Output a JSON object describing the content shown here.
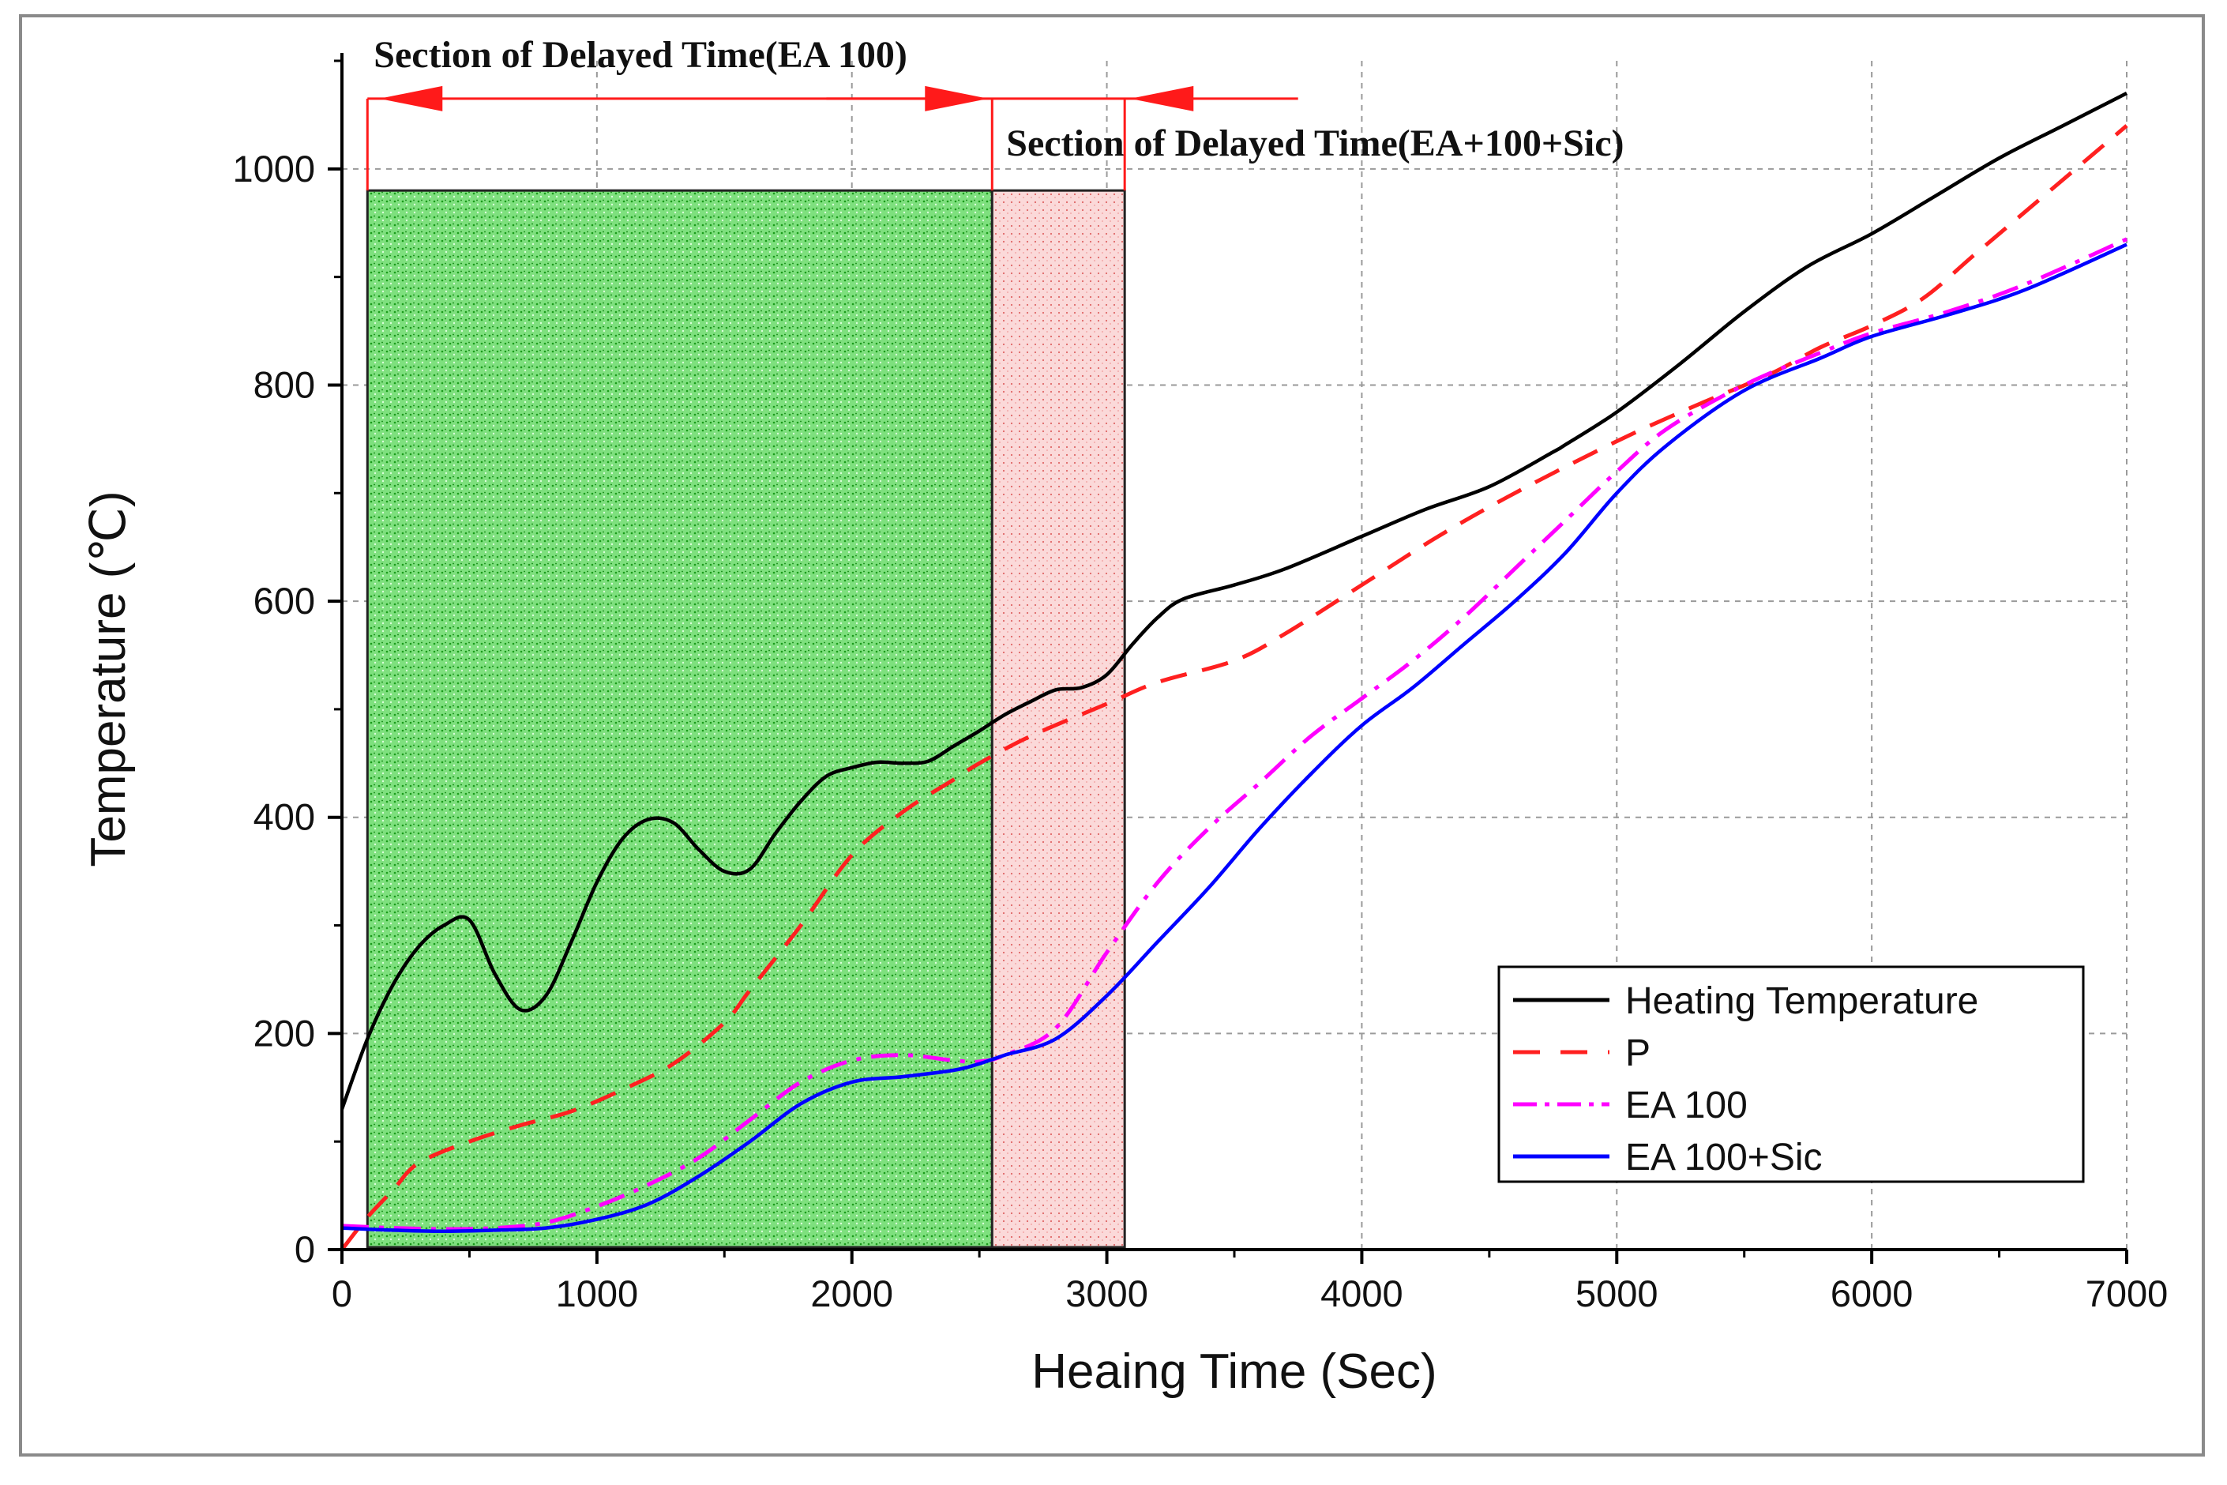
{
  "chart_data": {
    "type": "line",
    "title": "",
    "xlabel": "Heaing Time (Sec)",
    "ylabel": "Temperature (℃)",
    "xlim": [
      0,
      7000
    ],
    "ylim": [
      0,
      1100
    ],
    "xticks": [
      "0",
      "1000",
      "2000",
      "3000",
      "4000",
      "5000",
      "6000",
      "7000"
    ],
    "yticks": [
      "0",
      "200",
      "400",
      "600",
      "800",
      "1000"
    ],
    "grid": "dashed",
    "legend_position": "bottom-right",
    "series": [
      {
        "name": "Heating Temperature",
        "color": "#000000",
        "dash": "solid",
        "points": [
          [
            0,
            130
          ],
          [
            100,
            195
          ],
          [
            200,
            245
          ],
          [
            300,
            280
          ],
          [
            400,
            300
          ],
          [
            500,
            305
          ],
          [
            600,
            255
          ],
          [
            700,
            222
          ],
          [
            800,
            235
          ],
          [
            900,
            285
          ],
          [
            1000,
            340
          ],
          [
            1100,
            380
          ],
          [
            1200,
            398
          ],
          [
            1300,
            395
          ],
          [
            1400,
            370
          ],
          [
            1500,
            350
          ],
          [
            1600,
            352
          ],
          [
            1700,
            385
          ],
          [
            1800,
            415
          ],
          [
            1900,
            438
          ],
          [
            2000,
            446
          ],
          [
            2100,
            451
          ],
          [
            2200,
            450
          ],
          [
            2300,
            452
          ],
          [
            2400,
            466
          ],
          [
            2500,
            480
          ],
          [
            2600,
            495
          ],
          [
            2700,
            507
          ],
          [
            2800,
            518
          ],
          [
            2900,
            520
          ],
          [
            3000,
            532
          ],
          [
            3100,
            560
          ],
          [
            3200,
            585
          ],
          [
            3300,
            602
          ],
          [
            3500,
            615
          ],
          [
            3700,
            630
          ],
          [
            4000,
            660
          ],
          [
            4250,
            685
          ],
          [
            4500,
            706
          ],
          [
            4750,
            738
          ],
          [
            4800,
            745
          ],
          [
            5000,
            775
          ],
          [
            5250,
            820
          ],
          [
            5500,
            868
          ],
          [
            5750,
            910
          ],
          [
            6000,
            940
          ],
          [
            6250,
            975
          ],
          [
            6500,
            1010
          ],
          [
            6750,
            1040
          ],
          [
            7000,
            1070
          ]
        ]
      },
      {
        "name": "P",
        "color": "#ff2020",
        "dash": "dashed",
        "points": [
          [
            0,
            0
          ],
          [
            100,
            30
          ],
          [
            200,
            55
          ],
          [
            300,
            80
          ],
          [
            500,
            100
          ],
          [
            700,
            115
          ],
          [
            900,
            128
          ],
          [
            1100,
            148
          ],
          [
            1300,
            172
          ],
          [
            1500,
            210
          ],
          [
            1600,
            240
          ],
          [
            1800,
            300
          ],
          [
            2000,
            365
          ],
          [
            2200,
            405
          ],
          [
            2400,
            435
          ],
          [
            2500,
            450
          ],
          [
            2700,
            475
          ],
          [
            3000,
            505
          ],
          [
            3200,
            525
          ],
          [
            3500,
            545
          ],
          [
            3700,
            570
          ],
          [
            4000,
            615
          ],
          [
            4300,
            660
          ],
          [
            4600,
            700
          ],
          [
            5000,
            748
          ],
          [
            5300,
            780
          ],
          [
            5600,
            810
          ],
          [
            5800,
            835
          ],
          [
            6000,
            855
          ],
          [
            6200,
            880
          ],
          [
            6400,
            920
          ],
          [
            6600,
            960
          ],
          [
            6800,
            1000
          ],
          [
            7000,
            1040
          ]
        ]
      },
      {
        "name": "EA 100",
        "color": "#ff00ff",
        "dash": "dashdot",
        "points": [
          [
            0,
            22
          ],
          [
            200,
            20
          ],
          [
            400,
            19
          ],
          [
            600,
            20
          ],
          [
            800,
            25
          ],
          [
            1000,
            40
          ],
          [
            1200,
            60
          ],
          [
            1400,
            85
          ],
          [
            1600,
            120
          ],
          [
            1800,
            155
          ],
          [
            2000,
            175
          ],
          [
            2200,
            180
          ],
          [
            2400,
            175
          ],
          [
            2500,
            174
          ],
          [
            2600,
            180
          ],
          [
            2800,
            205
          ],
          [
            3000,
            275
          ],
          [
            3200,
            340
          ],
          [
            3400,
            390
          ],
          [
            3600,
            432
          ],
          [
            3800,
            475
          ],
          [
            4000,
            510
          ],
          [
            4200,
            545
          ],
          [
            4400,
            585
          ],
          [
            4600,
            630
          ],
          [
            4800,
            675
          ],
          [
            5000,
            720
          ],
          [
            5200,
            760
          ],
          [
            5500,
            800
          ],
          [
            5800,
            830
          ],
          [
            6000,
            848
          ],
          [
            6300,
            868
          ],
          [
            6600,
            893
          ],
          [
            7000,
            935
          ]
        ]
      },
      {
        "name": "EA 100+Sic",
        "color": "#0000ff",
        "dash": "solid",
        "points": [
          [
            0,
            20
          ],
          [
            200,
            18
          ],
          [
            400,
            17
          ],
          [
            600,
            18
          ],
          [
            800,
            20
          ],
          [
            1000,
            28
          ],
          [
            1200,
            42
          ],
          [
            1400,
            68
          ],
          [
            1600,
            100
          ],
          [
            1800,
            135
          ],
          [
            2000,
            155
          ],
          [
            2200,
            160
          ],
          [
            2400,
            166
          ],
          [
            2500,
            172
          ],
          [
            2600,
            180
          ],
          [
            2800,
            195
          ],
          [
            3000,
            235
          ],
          [
            3200,
            285
          ],
          [
            3400,
            335
          ],
          [
            3600,
            390
          ],
          [
            3800,
            440
          ],
          [
            4000,
            485
          ],
          [
            4200,
            520
          ],
          [
            4400,
            560
          ],
          [
            4600,
            600
          ],
          [
            4800,
            645
          ],
          [
            5000,
            700
          ],
          [
            5200,
            745
          ],
          [
            5500,
            795
          ],
          [
            5800,
            825
          ],
          [
            6000,
            845
          ],
          [
            6300,
            865
          ],
          [
            6600,
            888
          ],
          [
            7000,
            930
          ]
        ]
      }
    ],
    "annotations": [
      {
        "text": "Section of Delayed Time(EA 100)",
        "x_range": [
          100,
          2550
        ],
        "fill": "green"
      },
      {
        "text": "Section of Delayed Time(EA+100+Sic)",
        "x_range": [
          2550,
          3070
        ],
        "fill": "pink"
      }
    ]
  }
}
